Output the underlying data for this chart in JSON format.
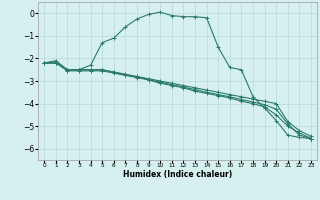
{
  "xlabel": "Humidex (Indice chaleur)",
  "ylabel": "",
  "background_color": "#d6f0f0",
  "grid_color": "#b8d8d8",
  "line_color": "#2a7a6a",
  "xlim": [
    -0.5,
    23.5
  ],
  "ylim": [
    -6.5,
    0.5
  ],
  "yticks": [
    0,
    -1,
    -2,
    -3,
    -4,
    -5,
    -6
  ],
  "xticks": [
    0,
    1,
    2,
    3,
    4,
    5,
    6,
    7,
    8,
    9,
    10,
    11,
    12,
    13,
    14,
    15,
    16,
    17,
    18,
    19,
    20,
    21,
    22,
    23
  ],
  "series1_x": [
    0,
    1,
    2,
    3,
    4,
    5,
    6,
    7,
    8,
    9,
    10,
    11,
    12,
    13,
    14,
    15,
    16,
    17,
    18,
    19,
    20,
    21,
    22,
    23
  ],
  "series1_y": [
    -2.2,
    -2.1,
    -2.5,
    -2.5,
    -2.3,
    -1.3,
    -1.1,
    -0.6,
    -0.25,
    -0.05,
    0.05,
    -0.1,
    -0.15,
    -0.15,
    -0.2,
    -1.5,
    -2.4,
    -2.5,
    -3.7,
    -4.2,
    -4.75,
    -5.4,
    -5.5,
    -5.55
  ],
  "series2_x": [
    0,
    1,
    2,
    3,
    4,
    5,
    6,
    7,
    8,
    9,
    10,
    11,
    12,
    13,
    14,
    15,
    16,
    17,
    18,
    19,
    20,
    21,
    22,
    23
  ],
  "series2_y": [
    -2.2,
    -2.2,
    -2.5,
    -2.5,
    -2.5,
    -2.5,
    -2.6,
    -2.7,
    -2.8,
    -2.9,
    -3.0,
    -3.1,
    -3.2,
    -3.3,
    -3.4,
    -3.5,
    -3.6,
    -3.7,
    -3.8,
    -3.9,
    -4.0,
    -4.8,
    -5.2,
    -5.45
  ],
  "series3_x": [
    0,
    1,
    2,
    3,
    4,
    5,
    6,
    7,
    8,
    9,
    10,
    11,
    12,
    13,
    14,
    15,
    16,
    17,
    18,
    19,
    20,
    21,
    22,
    23
  ],
  "series3_y": [
    -2.2,
    -2.2,
    -2.55,
    -2.55,
    -2.55,
    -2.55,
    -2.65,
    -2.75,
    -2.85,
    -2.95,
    -3.1,
    -3.2,
    -3.3,
    -3.45,
    -3.55,
    -3.65,
    -3.75,
    -3.9,
    -4.0,
    -4.15,
    -4.5,
    -5.0,
    -5.3,
    -5.55
  ],
  "series4_x": [
    0,
    1,
    2,
    3,
    4,
    5,
    6,
    7,
    8,
    9,
    10,
    11,
    12,
    13,
    14,
    15,
    16,
    17,
    18,
    19,
    20,
    21,
    22,
    23
  ],
  "series4_y": [
    -2.2,
    -2.2,
    -2.5,
    -2.5,
    -2.5,
    -2.5,
    -2.62,
    -2.72,
    -2.82,
    -2.94,
    -3.05,
    -3.16,
    -3.27,
    -3.38,
    -3.5,
    -3.6,
    -3.7,
    -3.82,
    -3.93,
    -4.05,
    -4.25,
    -4.9,
    -5.4,
    -5.55
  ]
}
